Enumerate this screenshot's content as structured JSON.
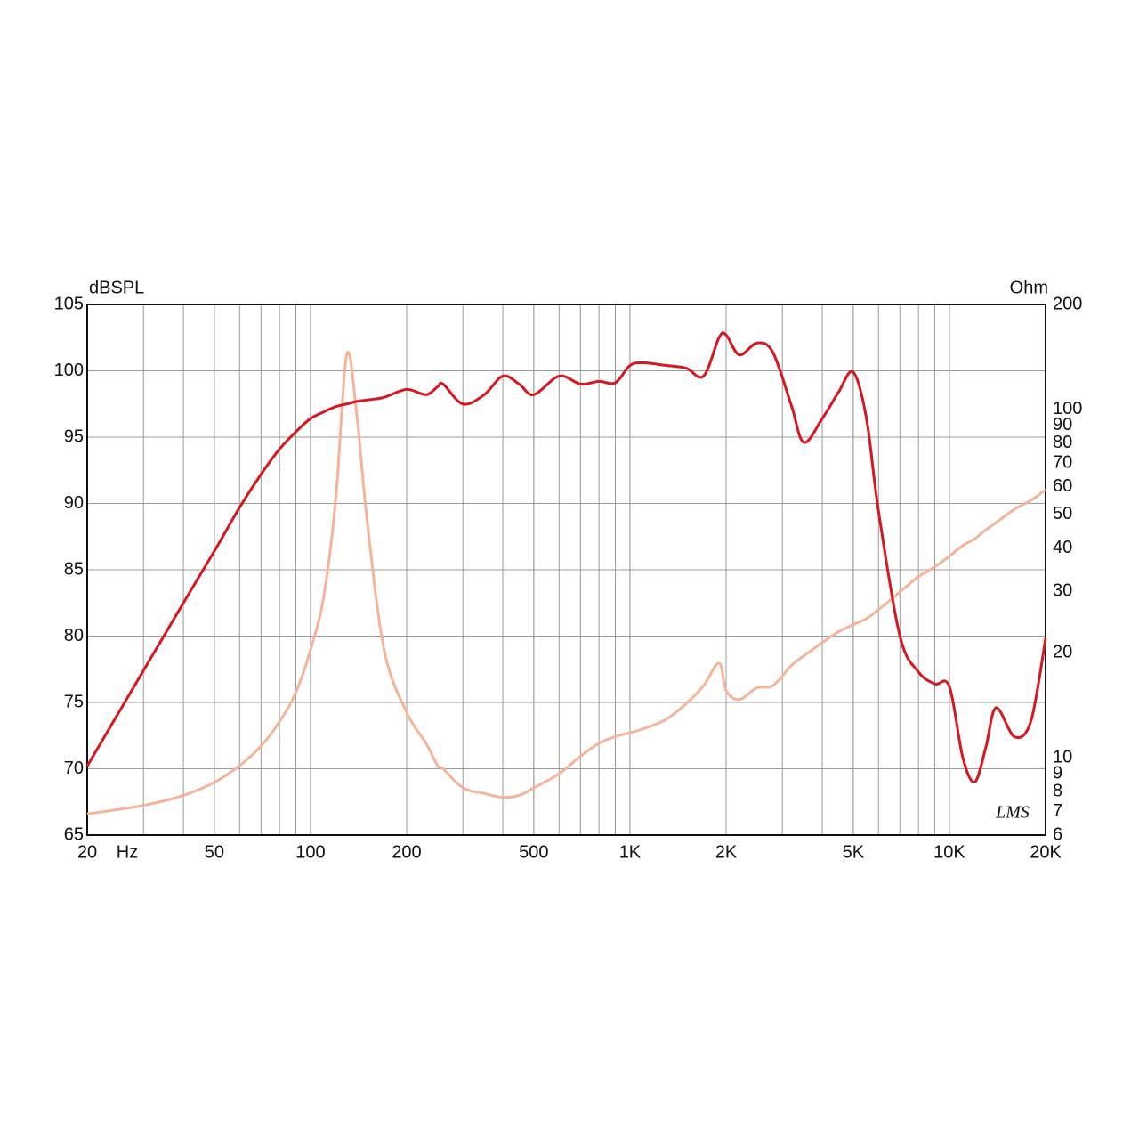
{
  "chart_data": {
    "type": "line",
    "y_label": "dBSPL",
    "y2_label": "Ohm",
    "x_label": "Hz",
    "annotation": "LMS",
    "x_scale": "log",
    "y2_scale": "log",
    "grid": true,
    "x": [
      20,
      30,
      40,
      50,
      60,
      70,
      80,
      90,
      100,
      110,
      120,
      130,
      140,
      150,
      170,
      200,
      230,
      250,
      260,
      300,
      350,
      400,
      450,
      500,
      600,
      700,
      800,
      900,
      1000,
      1100,
      1300,
      1500,
      1700,
      1900,
      2000,
      2200,
      2500,
      2800,
      3200,
      3500,
      4000,
      4500,
      5000,
      5500,
      6000,
      7000,
      8000,
      9000,
      10000,
      11000,
      12000,
      13000,
      14000,
      16000,
      18000,
      20000
    ],
    "series": [
      {
        "color": "#d9161f",
        "values": [
          70.2,
          77.4,
          82.5,
          86.4,
          89.7,
          92.2,
          94.1,
          95.4,
          96.4,
          96.9,
          97.3,
          97.5,
          97.7,
          97.8,
          98,
          98.6,
          98.2,
          98.8,
          99,
          97.5,
          98.2,
          99.6,
          99,
          98.2,
          99.6,
          99,
          99.2,
          99.1,
          100.4,
          100.6,
          100.4,
          100.2,
          99.6,
          102.5,
          102.7,
          101.2,
          102.1,
          101.4,
          97.4,
          94.6,
          96.4,
          98.4,
          99.9,
          96.4,
          89.4,
          80,
          77.3,
          76.4,
          76.2,
          70.9,
          69,
          71.6,
          74.6,
          72.4,
          73.6,
          79.8
        ]
      },
      {
        "color": "#f5b49a",
        "axis": "y2",
        "values": [
          6.9,
          7.3,
          7.8,
          8.5,
          9.5,
          10.8,
          12.7,
          15.4,
          20.4,
          29,
          55.4,
          144,
          94,
          49,
          20.4,
          13.5,
          11,
          9.5,
          9.3,
          8.2,
          7.9,
          7.7,
          7.8,
          8.2,
          9,
          10.1,
          11,
          11.5,
          11.8,
          12.1,
          12.9,
          14.3,
          16.1,
          18.7,
          15.6,
          14.7,
          15.9,
          16.1,
          18.4,
          19.6,
          21.4,
          23,
          24.1,
          25.1,
          26.6,
          29.9,
          33.1,
          35.3,
          37.9,
          40.6,
          42.5,
          45.1,
          47.3,
          51.7,
          54.8,
          58.8
        ]
      }
    ],
    "xlim": [
      20,
      20000
    ],
    "xticks": [
      20,
      50,
      100,
      200,
      500,
      {
        "value": 1000,
        "label": "1K"
      },
      {
        "value": 2000,
        "label": "2K"
      },
      {
        "value": 5000,
        "label": "5K"
      },
      {
        "value": 10000,
        "label": "10K"
      },
      {
        "value": 20000,
        "label": "20K"
      }
    ],
    "ylim": [
      65,
      105
    ],
    "yticks": [
      65,
      70,
      75,
      80,
      85,
      90,
      95,
      100,
      105
    ],
    "y2lim": [
      6,
      200
    ],
    "y2ticks": [
      6,
      7,
      8,
      9,
      10,
      20,
      30,
      40,
      50,
      60,
      70,
      80,
      90,
      100,
      200
    ]
  }
}
